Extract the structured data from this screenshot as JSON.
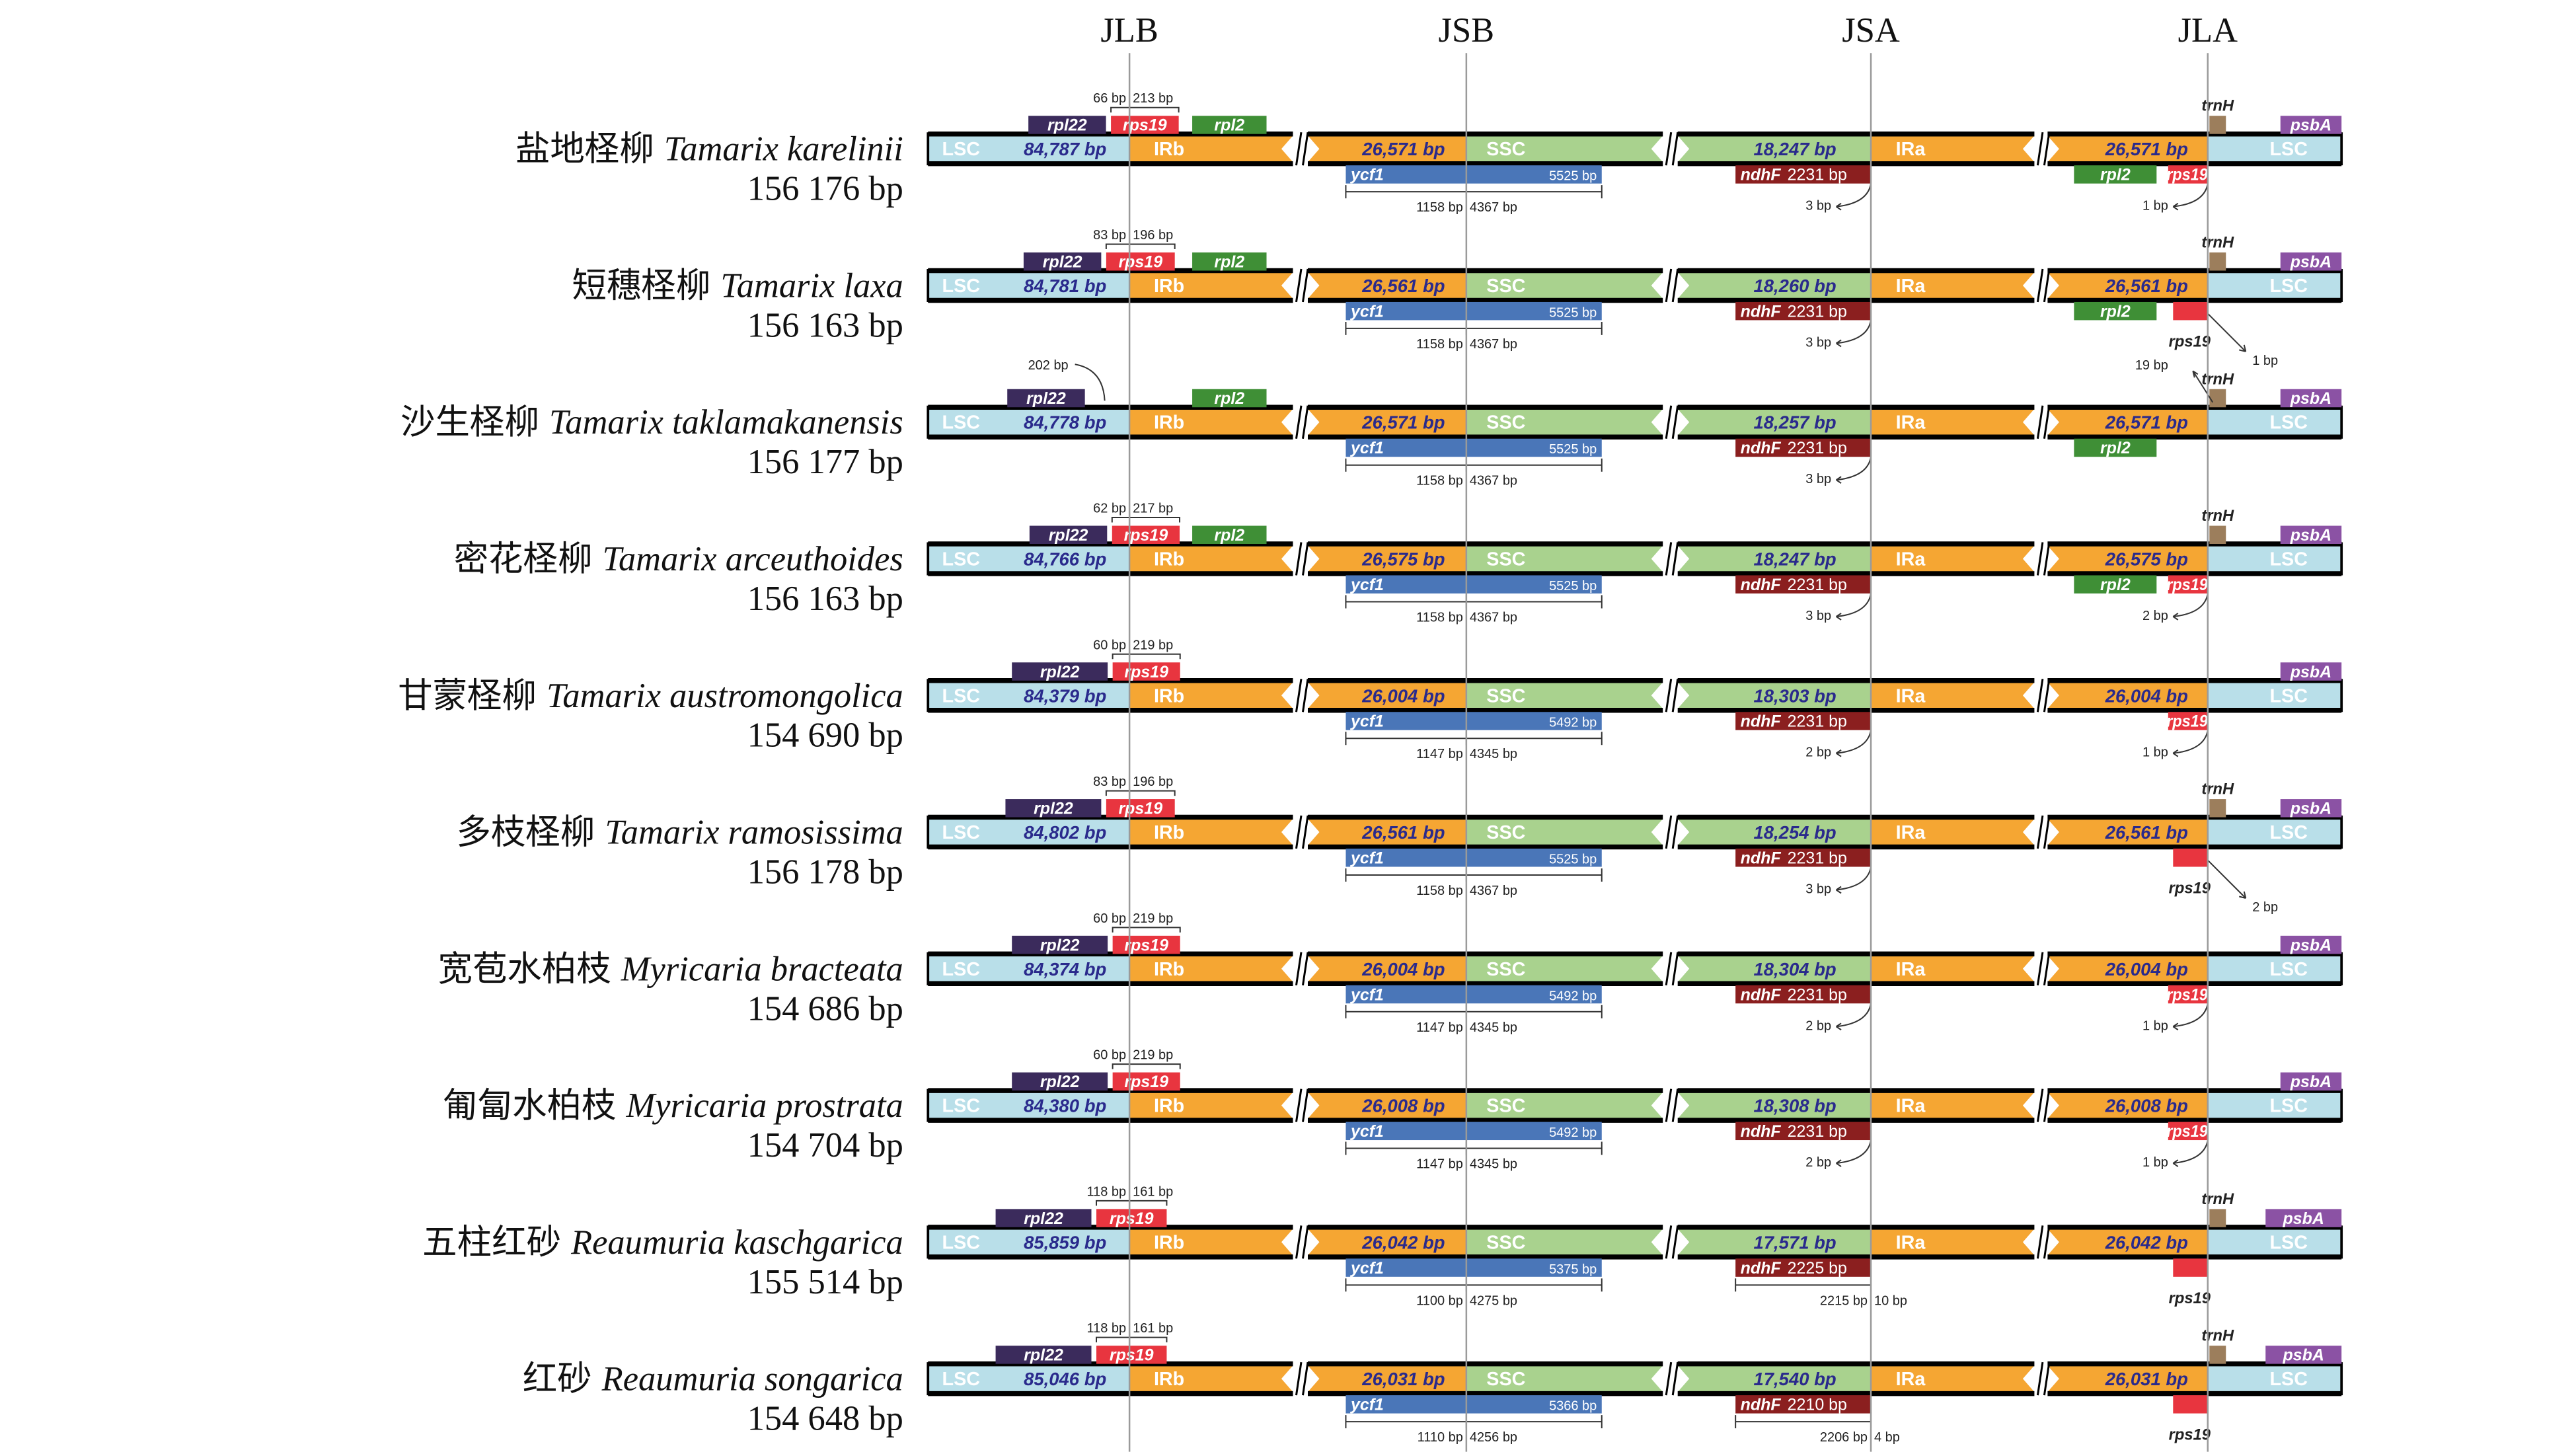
{
  "junctions": [
    "JLB",
    "JSB",
    "JSA",
    "JLA"
  ],
  "region_labels": {
    "lsc": "LSC",
    "irb": "IRb",
    "ssc": "SSC",
    "ira": "IRa"
  },
  "gene_names": {
    "rpl22": "rpl22",
    "rps19": "rps19",
    "rpl2": "rpl2",
    "trnH": "trnH",
    "psbA": "psbA",
    "ycf1": "ycf1",
    "ndhF": "ndhF"
  },
  "colors": {
    "lsc": "#b9dfe9",
    "ir": "#f5a633",
    "ssc": "#a9d28e",
    "size_text": "#2a2a8c",
    "rpl22": "#3b2b5c",
    "rps19": "#e8353f",
    "rpl2": "#3f8f36",
    "trnH": "#9c7e5c",
    "psbA": "#8b52a4",
    "ycf1": "#4a76b8",
    "ndhF": "#8b1f1f"
  },
  "rows": [
    {
      "cn": "盐地柽柳",
      "latin": "Tamarix karelinii",
      "length": "156 176 bp",
      "lsc": "84,787 bp",
      "ir": "26,571 bp",
      "ssc": "18,247 bp",
      "top_rps19": true,
      "top_rpl2": true,
      "jlb": [
        "66 bp",
        "213 bp"
      ],
      "trnH": true,
      "ycf1": "5525 bp",
      "ycf1_split": [
        "1158 bp",
        "4367 bp"
      ],
      "ndhF": "2231 bp",
      "ndhF_note": "3 bp",
      "right_rpl2": true,
      "right_rps19": "inside",
      "right_note": {
        "text": "1 bp",
        "side": "left"
      }
    },
    {
      "cn": "短穗柽柳",
      "latin": "Tamarix laxa",
      "length": "156 163 bp",
      "lsc": "84,781 bp",
      "ir": "26,561 bp",
      "ssc": "18,260 bp",
      "top_rps19": true,
      "top_rpl2": true,
      "jlb": [
        "83 bp",
        "196 bp"
      ],
      "trnH": true,
      "ycf1": "5525 bp",
      "ycf1_split": [
        "1158 bp",
        "4367 bp"
      ],
      "ndhF": "2231 bp",
      "ndhF_note": "3 bp",
      "right_rpl2": true,
      "right_rps19": "below",
      "right_note": {
        "text": "1 bp",
        "side": "right"
      }
    },
    {
      "cn": "沙生柽柳",
      "latin": "Tamarix taklamakanensis",
      "length": "156 177 bp",
      "lsc": "84,778 bp",
      "ir": "26,571 bp",
      "ssc": "18,257 bp",
      "top_rps19": false,
      "top_rpl2": true,
      "jlb_note": "202 bp",
      "trnH": true,
      "trnH_note": "19 bp",
      "ycf1": "5525 bp",
      "ycf1_split": [
        "1158 bp",
        "4367 bp"
      ],
      "ndhF": "2231 bp",
      "ndhF_note": "3 bp",
      "right_rpl2": true,
      "right_rps19": "none"
    },
    {
      "cn": "密花柽柳",
      "latin": "Tamarix arceuthoides",
      "length": "156 163 bp",
      "lsc": "84,766 bp",
      "ir": "26,575 bp",
      "ssc": "18,247 bp",
      "top_rps19": true,
      "top_rpl2": true,
      "jlb": [
        "62 bp",
        "217 bp"
      ],
      "trnH": true,
      "ycf1": "5525 bp",
      "ycf1_split": [
        "1158 bp",
        "4367 bp"
      ],
      "ndhF": "2231 bp",
      "ndhF_note": "3 bp",
      "right_rpl2": true,
      "right_rps19": "inside",
      "right_note": {
        "text": "2 bp",
        "side": "left"
      }
    },
    {
      "cn": "甘蒙柽柳",
      "latin": "Tamarix austromongolica",
      "length": "154 690 bp",
      "lsc": "84,379 bp",
      "ir": "26,004 bp",
      "ssc": "18,303 bp",
      "top_rps19": true,
      "top_rpl2": false,
      "jlb": [
        "60 bp",
        "219 bp"
      ],
      "trnH": false,
      "ycf1": "5492 bp",
      "ycf1_split": [
        "1147 bp",
        "4345 bp"
      ],
      "ndhF": "2231 bp",
      "ndhF_note": "2 bp",
      "right_rpl2": false,
      "right_rps19": "inside",
      "right_note": {
        "text": "1 bp",
        "side": "left"
      }
    },
    {
      "cn": "多枝柽柳",
      "latin": "Tamarix ramosissima",
      "length": "156 178 bp",
      "lsc": "84,802 bp",
      "ir": "26,561 bp",
      "ssc": "18,254 bp",
      "top_rps19": true,
      "top_rpl2": false,
      "jlb": [
        "83 bp",
        "196 bp"
      ],
      "trnH": true,
      "ycf1": "5525 bp",
      "ycf1_split": [
        "1158 bp",
        "4367 bp"
      ],
      "ndhF": "2231 bp",
      "ndhF_note": "3 bp",
      "right_rpl2": false,
      "right_rps19": "below",
      "right_note": {
        "text": "2 bp",
        "side": "right"
      }
    },
    {
      "cn": "宽苞水柏枝",
      "latin": "Myricaria bracteata",
      "length": "154 686 bp",
      "lsc": "84,374 bp",
      "ir": "26,004 bp",
      "ssc": "18,304 bp",
      "top_rps19": true,
      "top_rpl2": false,
      "jlb": [
        "60 bp",
        "219 bp"
      ],
      "trnH": false,
      "ycf1": "5492 bp",
      "ycf1_split": [
        "1147 bp",
        "4345 bp"
      ],
      "ndhF": "2231 bp",
      "ndhF_note": "2 bp",
      "right_rpl2": false,
      "right_rps19": "inside",
      "right_note": {
        "text": "1 bp",
        "side": "left"
      }
    },
    {
      "cn": "匍匐水柏枝",
      "latin": "Myricaria prostrata",
      "length": "154 704 bp",
      "lsc": "84,380 bp",
      "ir": "26,008 bp",
      "ssc": "18,308 bp",
      "top_rps19": true,
      "top_rpl2": false,
      "jlb": [
        "60 bp",
        "219 bp"
      ],
      "trnH": false,
      "ycf1": "5492 bp",
      "ycf1_split": [
        "1147 bp",
        "4345 bp"
      ],
      "ndhF": "2231 bp",
      "ndhF_note": "2 bp",
      "right_rpl2": false,
      "right_rps19": "inside",
      "right_note": {
        "text": "1 bp",
        "side": "left"
      }
    },
    {
      "cn": "五柱红砂",
      "latin": "Reaumuria kaschgarica",
      "length": "155 514 bp",
      "lsc": "85,859 bp",
      "ir": "26,042 bp",
      "ssc": "17,571 bp",
      "top_rps19": true,
      "top_rpl2": false,
      "jlb": [
        "118 bp",
        "161 bp"
      ],
      "trnH": true,
      "ycf1": "5375 bp",
      "ycf1_split": [
        "1100 bp",
        "4275 bp"
      ],
      "ndhF": "2225 bp",
      "ndhF_split": [
        "2215 bp",
        "10 bp"
      ],
      "right_rpl2": false,
      "right_rps19": "below"
    },
    {
      "cn": "红砂",
      "latin": "Reaumuria songarica",
      "length": "154 648 bp",
      "lsc": "85,046 bp",
      "ir": "26,031 bp",
      "ssc": "17,540 bp",
      "top_rps19": true,
      "top_rpl2": false,
      "jlb": [
        "118 bp",
        "161 bp"
      ],
      "trnH": true,
      "ycf1": "5366 bp",
      "ycf1_split": [
        "1110 bp",
        "4256 bp"
      ],
      "ndhF": "2210 bp",
      "ndhF_split": [
        "2206 bp",
        "4 bp"
      ],
      "right_rpl2": false,
      "right_rps19": "below"
    }
  ]
}
